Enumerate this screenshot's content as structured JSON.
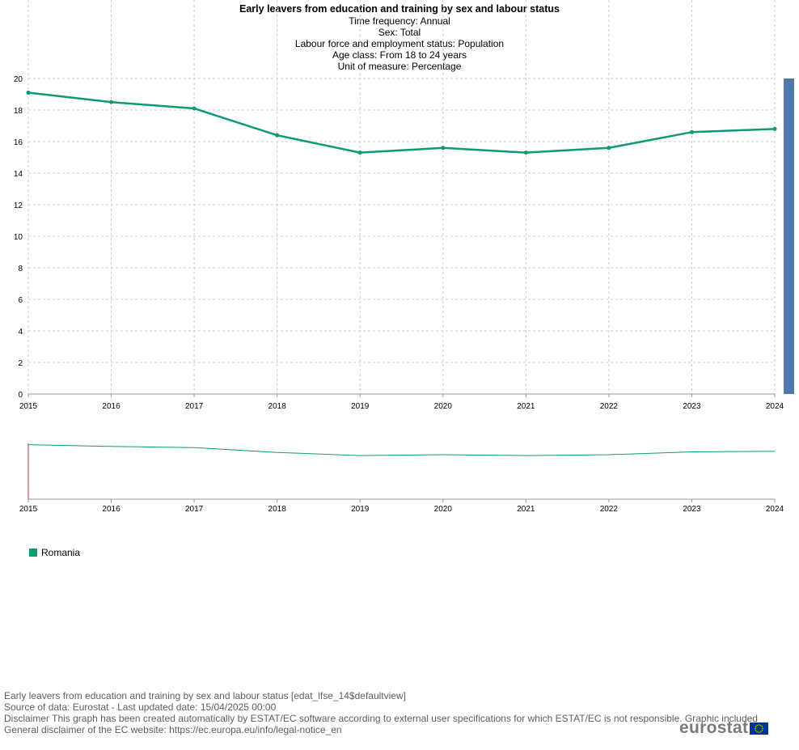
{
  "chart_data": {
    "type": "line",
    "title": "Early leavers from education and training by sex and labour status",
    "subtitle_lines": [
      "Time frequency:  Annual",
      "Sex:  Total",
      "Labour force and employment status:  Population",
      "Age class:  From 18 to 24 years",
      "Unit of measure:  Percentage"
    ],
    "categories": [
      "2015",
      "2016",
      "2017",
      "2018",
      "2019",
      "2020",
      "2021",
      "2022",
      "2023",
      "2024"
    ],
    "series": [
      {
        "name": "Romania",
        "values": [
          19.1,
          18.5,
          18.1,
          16.4,
          15.3,
          15.6,
          15.3,
          15.6,
          16.6,
          16.8
        ]
      }
    ],
    "ylim": [
      0,
      20
    ],
    "yticks": [
      0,
      2,
      4,
      6,
      8,
      10,
      12,
      14,
      16,
      18,
      20
    ],
    "grid": true,
    "legend_position": "bottom-left",
    "navigator": true
  },
  "colors": {
    "series": "#0e9a73",
    "grid": "#cccccc",
    "scrollbar": "#4f79a8",
    "navigator_handle": "#a83838",
    "eu_blue": "#003399",
    "eu_star": "#ffcc00"
  },
  "footer": {
    "line1": "Early leavers from education and training by sex and labour status [edat_lfse_14$defaultview]",
    "line2": "Source of data: Eurostat - Last updated date: 15/04/2025 00:00",
    "line3": "Disclaimer This graph has been created automatically by ESTAT/EC software according to external user specifications for which ESTAT/EC is not responsible. Graphic included",
    "line4": "General disclaimer of the EC website: https://ec.europa.eu/info/legal-notice_en"
  },
  "logo": {
    "text": "eurostat"
  }
}
